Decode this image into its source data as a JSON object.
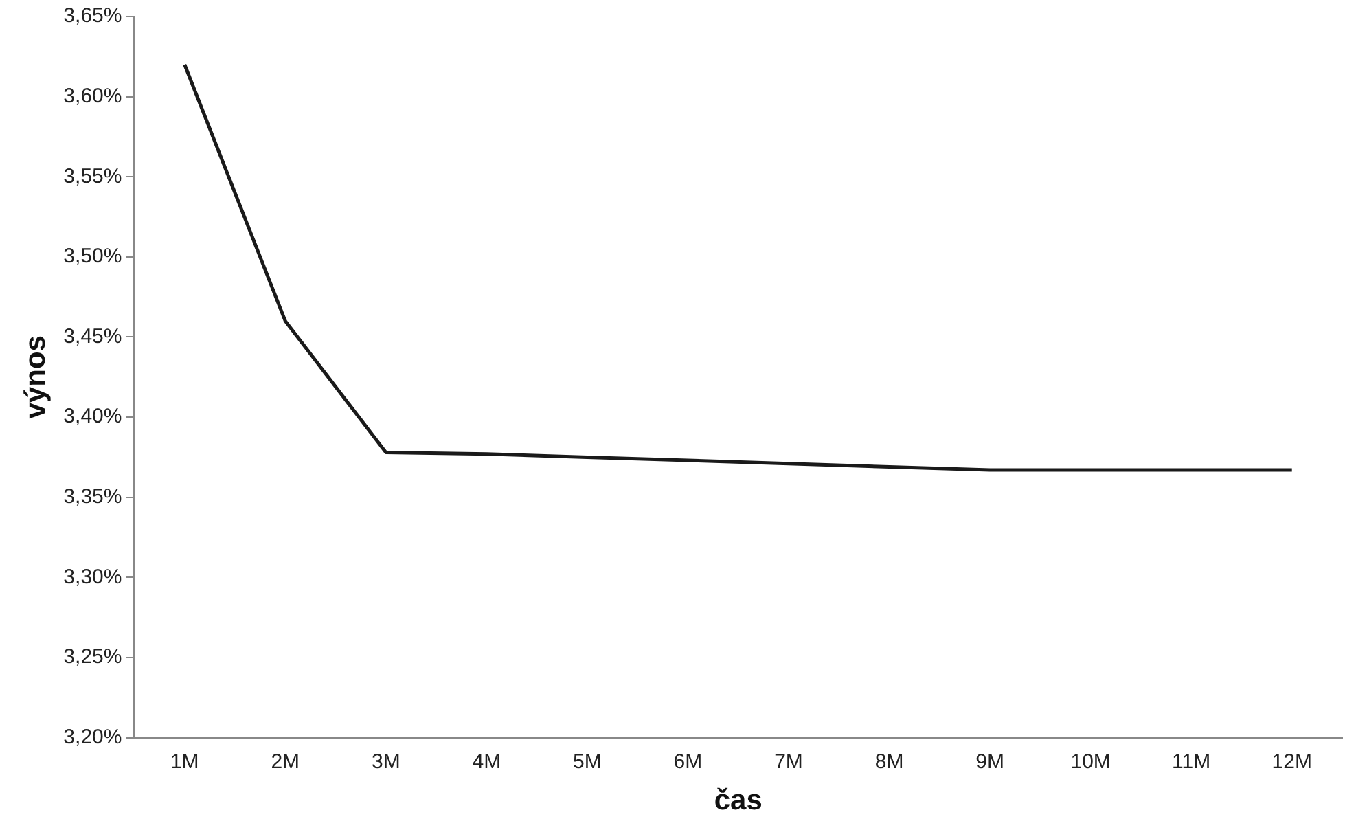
{
  "chart_data": {
    "type": "line",
    "xlabel": "čas",
    "ylabel": "výnos",
    "categories": [
      "1M",
      "2M",
      "3M",
      "4M",
      "5M",
      "6M",
      "7M",
      "8M",
      "9M",
      "10M",
      "11M",
      "12M"
    ],
    "values": [
      3.62,
      3.46,
      3.378,
      3.377,
      3.375,
      3.373,
      3.371,
      3.369,
      3.367,
      3.367,
      3.367,
      3.367
    ],
    "color": "#1a1a1a",
    "marker": "none",
    "line_style": "solid",
    "grid": false,
    "legend": false,
    "ylim": [
      3.2,
      3.65
    ],
    "yticks": [
      {
        "value": 3.2,
        "label": "3,20%"
      },
      {
        "value": 3.25,
        "label": "3,25%"
      },
      {
        "value": 3.3,
        "label": "3,30%"
      },
      {
        "value": 3.35,
        "label": "3,35%"
      },
      {
        "value": 3.4,
        "label": "3,40%"
      },
      {
        "value": 3.45,
        "label": "3,45%"
      },
      {
        "value": 3.5,
        "label": "3,50%"
      },
      {
        "value": 3.55,
        "label": "3,55%"
      },
      {
        "value": 3.6,
        "label": "3,60%"
      },
      {
        "value": 3.65,
        "label": "3,65%"
      }
    ]
  }
}
